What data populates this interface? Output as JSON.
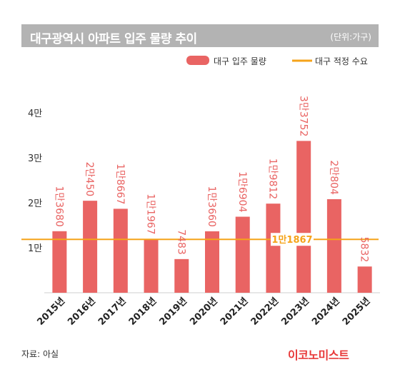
{
  "header": {
    "title": "대구광역시 아파트 입주 물량 추이",
    "unit": "(단위:가구)"
  },
  "footer": {
    "source": "자료: 아실",
    "brand": "이코노미스트"
  },
  "colors": {
    "bar": "#e96463",
    "line": "#f5a31a",
    "title_bg": "#b3b3b3",
    "brand": "#e83a3a"
  },
  "chart_data": {
    "type": "bar",
    "categories": [
      "2015년",
      "2016년",
      "2017년",
      "2018년",
      "2019년",
      "2020년",
      "2021년",
      "2022년",
      "2023년",
      "2024년",
      "2025년"
    ],
    "series": [
      {
        "name": "대구 입주 물량",
        "values": [
          13680,
          20450,
          18667,
          11967,
          7483,
          13660,
          16904,
          19812,
          33752,
          20804,
          5832
        ],
        "labels": [
          "1만3680",
          "2만450",
          "1만8667",
          "1만1967",
          "7483",
          "1만3660",
          "1만6904",
          "1만9812",
          "3만3752",
          "2만804",
          "5832"
        ]
      }
    ],
    "reference_line": {
      "name": "대구 적정 수요",
      "value": 11867,
      "label": "1만1867"
    },
    "ylim": [
      0,
      40000
    ],
    "yticks": [
      10000,
      20000,
      30000,
      40000
    ],
    "ytick_labels": [
      "1만",
      "2만",
      "3만",
      "4만"
    ],
    "legend_position": "top-right"
  }
}
